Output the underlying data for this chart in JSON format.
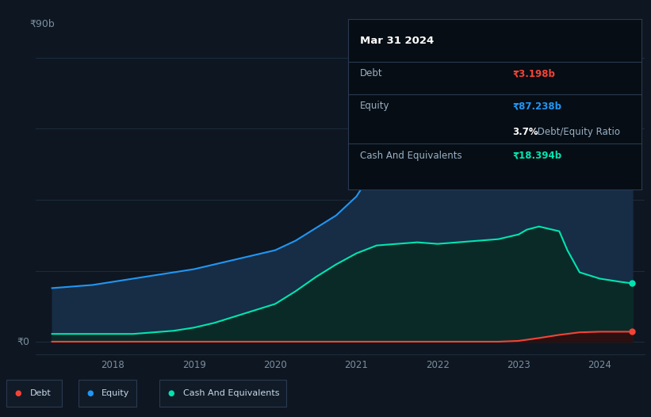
{
  "background_color": "#0e1621",
  "plot_bg_color": "#0e1621",
  "ylabel_top": "₹90b",
  "ylabel_zero": "₹0",
  "x_ticks": [
    2017.3,
    2018.0,
    2019.0,
    2020.0,
    2021.0,
    2022.0,
    2023.0,
    2024.0
  ],
  "x_tick_labels": [
    "",
    "2018",
    "2019",
    "2020",
    "2021",
    "2022",
    "2023",
    "2024"
  ],
  "xlim": [
    2017.05,
    2024.55
  ],
  "ylim": [
    -4,
    95
  ],
  "grid_color": "#1c2e3e",
  "grid_y_values": [
    0,
    22.5,
    45,
    67.5,
    90
  ],
  "equity_color": "#2196f3",
  "equity_fill": "#162d45",
  "debt_color": "#f44336",
  "debt_fill": "#2a1010",
  "cash_color": "#00e5b0",
  "cash_fill": "#0a2a28",
  "legend_bg": "#111b27",
  "legend_border": "#2a3a50",
  "tooltip_bg": "#060d14",
  "tooltip_border": "#2a3a50",
  "equity_data_x": [
    2017.25,
    2017.5,
    2017.75,
    2018.0,
    2018.25,
    2018.5,
    2018.75,
    2019.0,
    2019.25,
    2019.5,
    2019.75,
    2020.0,
    2020.25,
    2020.5,
    2020.75,
    2021.0,
    2021.1,
    2021.25,
    2021.5,
    2021.75,
    2022.0,
    2022.25,
    2022.5,
    2022.75,
    2023.0,
    2023.25,
    2023.5,
    2023.75,
    2024.0,
    2024.25,
    2024.4
  ],
  "equity_data_y": [
    17,
    17.5,
    18,
    19,
    20,
    21,
    22,
    23,
    24.5,
    26,
    27.5,
    29,
    32,
    36,
    40,
    46,
    50,
    54,
    57,
    60,
    62,
    64,
    66,
    68,
    70,
    74,
    78,
    82,
    86,
    90,
    91
  ],
  "debt_data_x": [
    2017.25,
    2018.0,
    2019.0,
    2020.0,
    2021.0,
    2022.0,
    2022.75,
    2023.0,
    2023.25,
    2023.5,
    2023.75,
    2024.0,
    2024.25,
    2024.4
  ],
  "debt_data_y": [
    0.05,
    0.05,
    0.05,
    0.05,
    0.05,
    0.05,
    0.05,
    0.3,
    1.2,
    2.2,
    3.0,
    3.2,
    3.2,
    3.2
  ],
  "cash_data_x": [
    2017.25,
    2017.5,
    2017.75,
    2018.0,
    2018.25,
    2018.5,
    2018.75,
    2019.0,
    2019.25,
    2019.5,
    2019.75,
    2020.0,
    2020.25,
    2020.5,
    2020.75,
    2021.0,
    2021.25,
    2021.5,
    2021.75,
    2022.0,
    2022.25,
    2022.5,
    2022.75,
    2023.0,
    2023.1,
    2023.25,
    2023.5,
    2023.6,
    2023.75,
    2024.0,
    2024.25,
    2024.4
  ],
  "cash_data_y": [
    2.5,
    2.5,
    2.5,
    2.5,
    2.5,
    3.0,
    3.5,
    4.5,
    6.0,
    8.0,
    10.0,
    12.0,
    16.0,
    20.5,
    24.5,
    28.0,
    30.5,
    31.0,
    31.5,
    31.0,
    31.5,
    32.0,
    32.5,
    34.0,
    35.5,
    36.5,
    35.0,
    29.0,
    22.0,
    20.0,
    19.0,
    18.5
  ],
  "debt_label": "Debt",
  "equity_label": "Equity",
  "cash_label": "Cash And Equivalents",
  "tooltip_title": "Mar 31 2024",
  "tooltip_debt_label": "Debt",
  "tooltip_debt_value": "₹3.198b",
  "tooltip_equity_label": "Equity",
  "tooltip_equity_value": "₹87.238b",
  "tooltip_ratio_bold": "3.7%",
  "tooltip_ratio_plain": " Debt/Equity Ratio",
  "tooltip_cash_label": "Cash And Equivalents",
  "tooltip_cash_value": "₹18.394b"
}
